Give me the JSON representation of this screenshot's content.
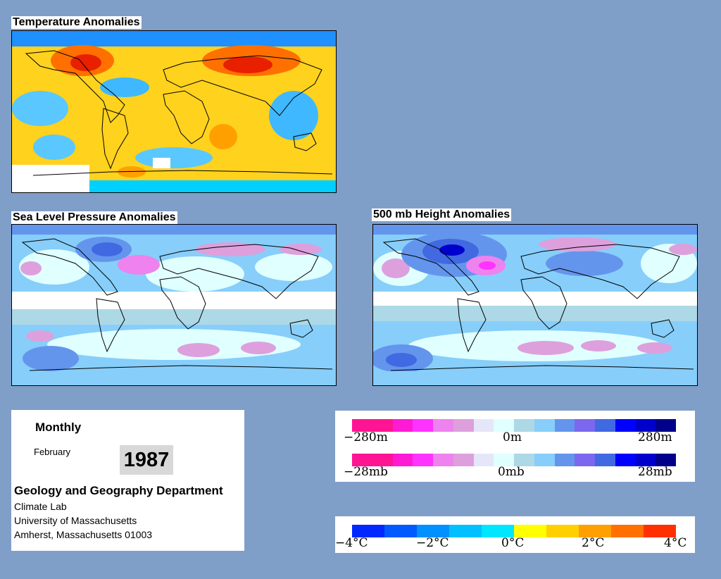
{
  "panels": {
    "temperature": {
      "title": "Temperature Anomalies"
    },
    "slp": {
      "title": "Sea Level Pressure Anomalies"
    },
    "height500": {
      "title": "500 mb Height Anomalies"
    }
  },
  "info": {
    "frequency": "Monthly",
    "month": "February",
    "year": "1987",
    "department": "Geology and Geography Department",
    "lab": "Climate Lab",
    "university": "University of Massachusetts",
    "address": "Amherst, Massachusetts 01003"
  },
  "legend_height": {
    "colors": [
      "#ff1493",
      "#ff1493",
      "#ff1ad6",
      "#ff33ff",
      "#ee82ee",
      "#dda0dd",
      "#e6e6fa",
      "#e0ffff",
      "#add8e6",
      "#87cefa",
      "#6495ed",
      "#7b68ee",
      "#4169e1",
      "#0000ff",
      "#0000cd",
      "#00008b"
    ],
    "labels": {
      "min": "−280m",
      "mid": "0m",
      "max": "280m"
    }
  },
  "legend_pressure": {
    "colors": [
      "#ff1493",
      "#ff1493",
      "#ff1ad6",
      "#ff33ff",
      "#ee82ee",
      "#dda0dd",
      "#e6e6fa",
      "#e0ffff",
      "#add8e6",
      "#87cefa",
      "#6495ed",
      "#7b68ee",
      "#4169e1",
      "#0000ff",
      "#0000cd",
      "#00008b"
    ],
    "labels": {
      "min": "−28mb",
      "mid": "0mb",
      "max": "28mb"
    }
  },
  "legend_temperature": {
    "colors": [
      "#0028ff",
      "#005aff",
      "#0090ff",
      "#00c0ff",
      "#00e6ff",
      "#ffff00",
      "#ffd000",
      "#ffa000",
      "#ff7000",
      "#ff3000"
    ],
    "labels": {
      "t1": "−4°C",
      "t2": "−2°C",
      "t3": "0°C",
      "t4": "2°C",
      "t5": "4°C"
    }
  },
  "palette": {
    "background": "#7f9fc8",
    "warm": "#ff4000",
    "cool": "#00bfff",
    "neutral": "#ffd21e"
  }
}
